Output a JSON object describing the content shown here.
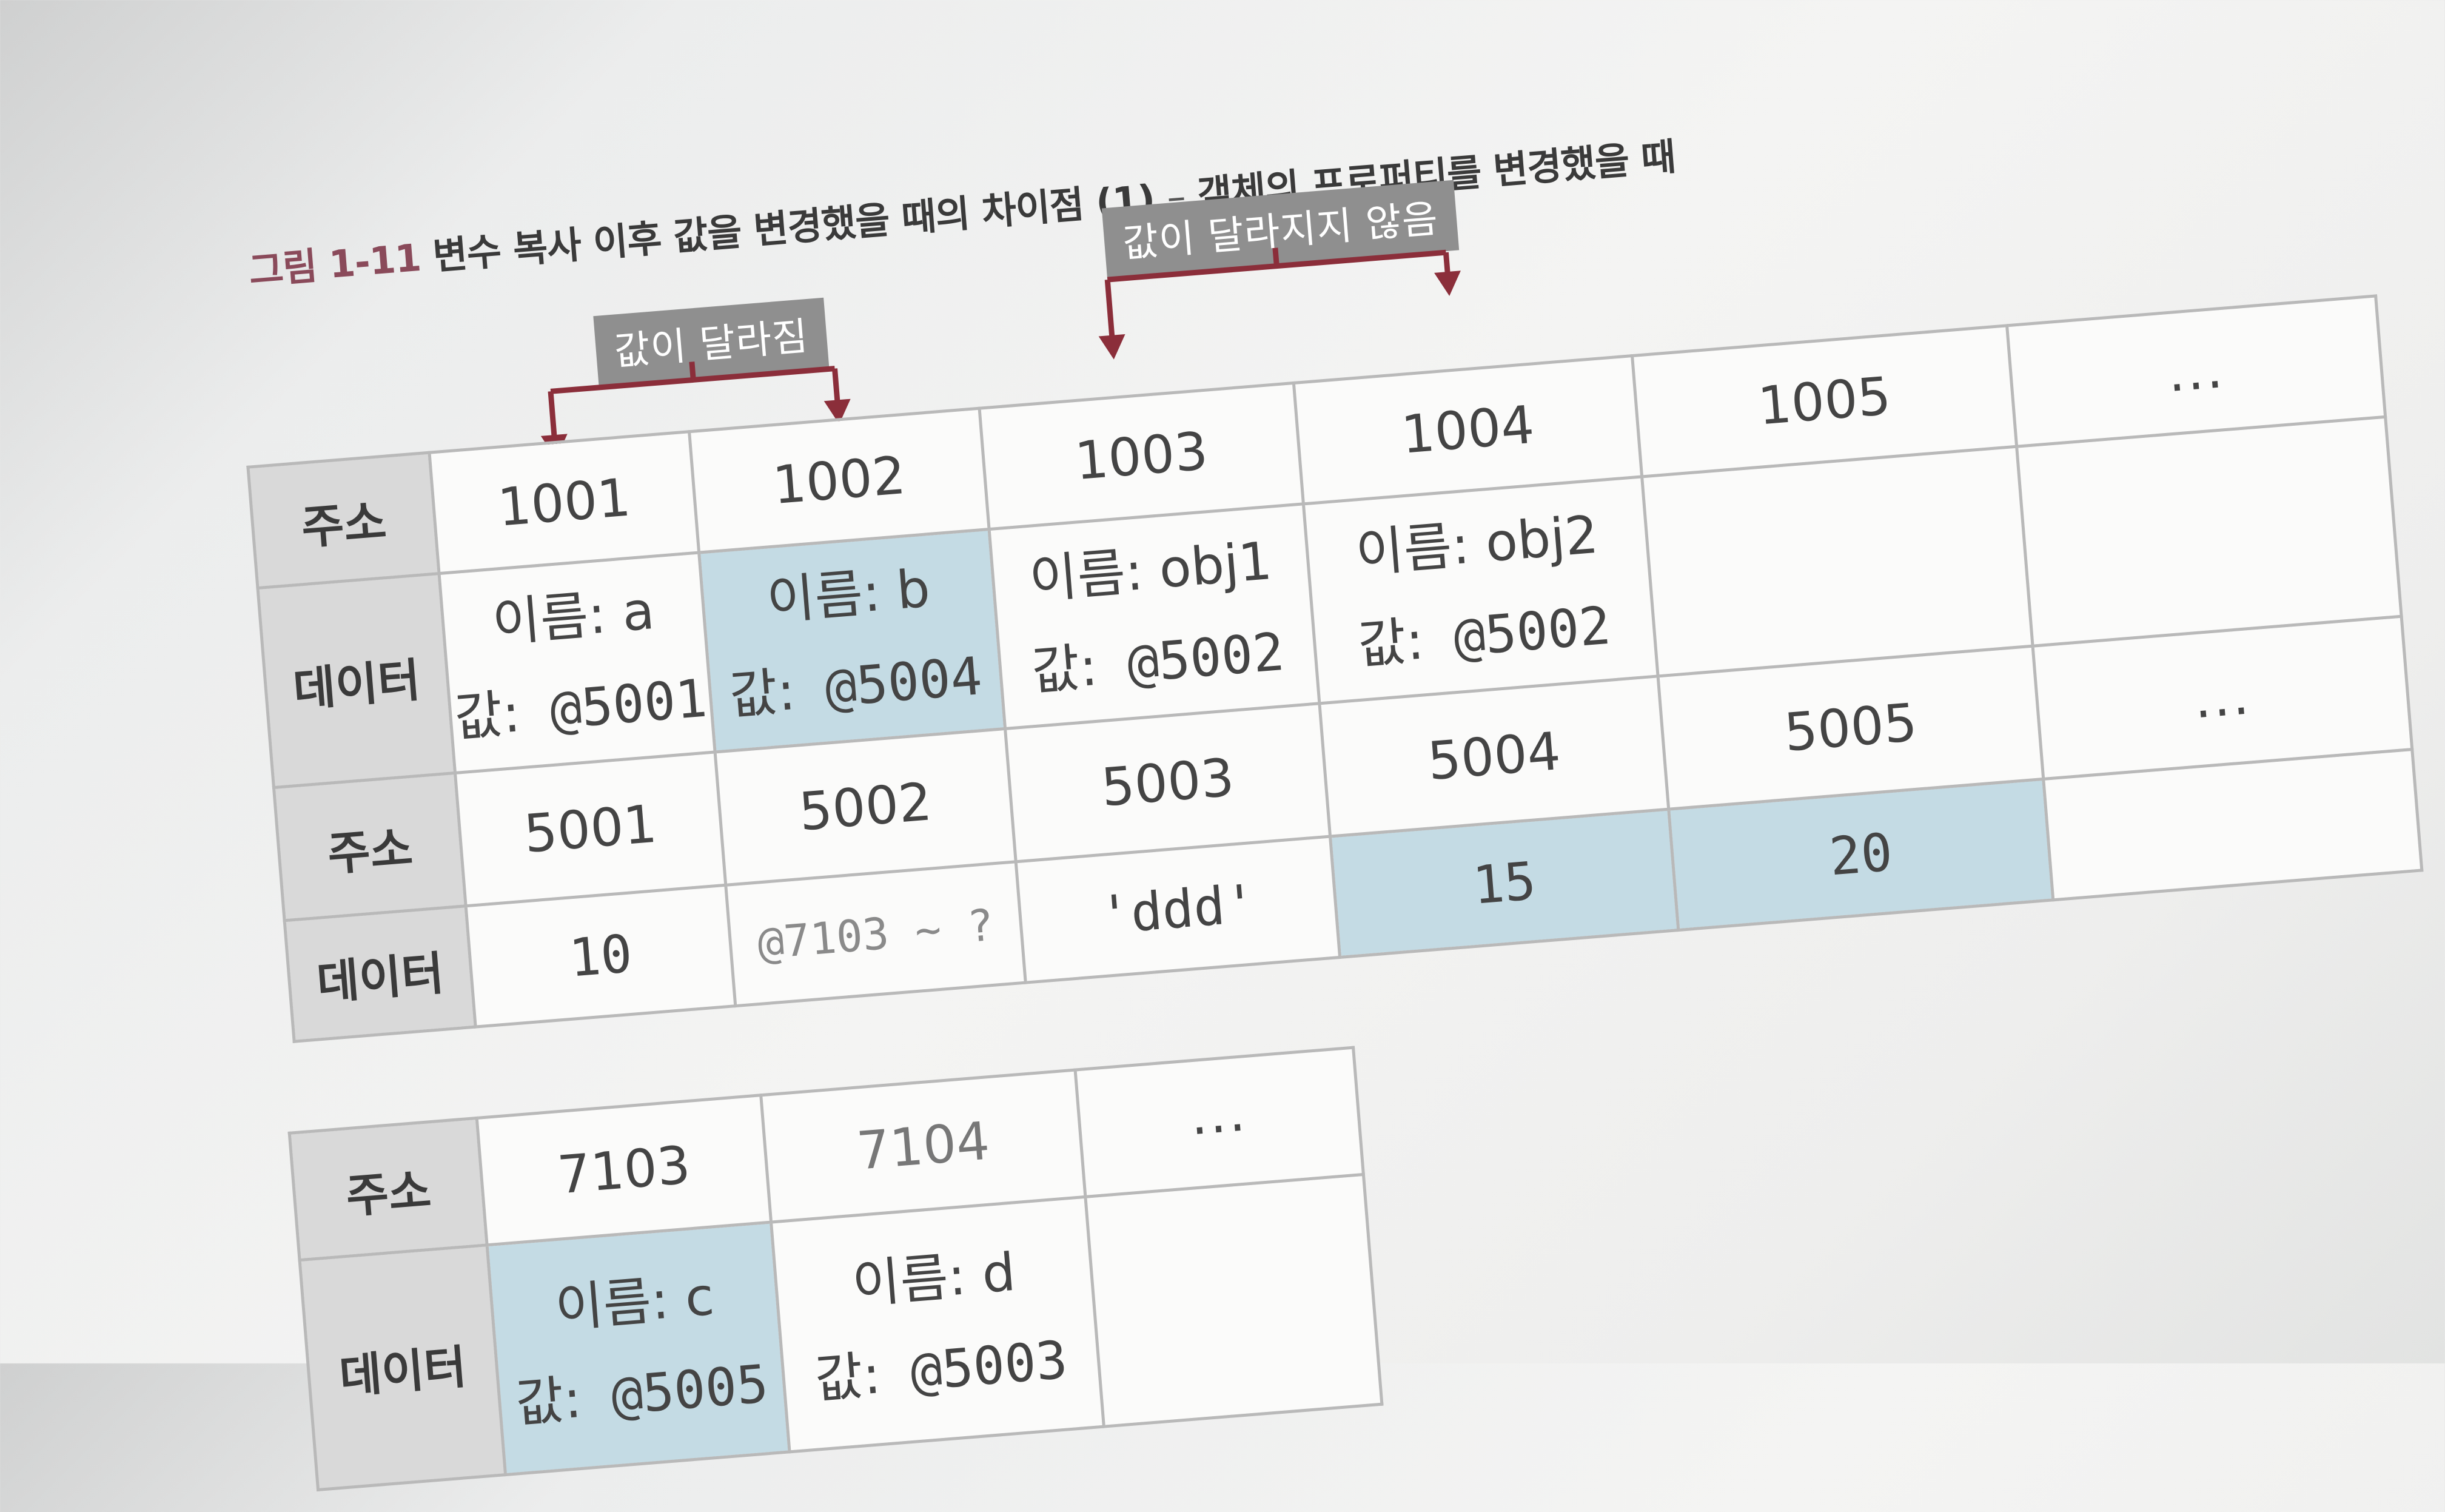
{
  "caption": {
    "figure_label": "그림 1-11",
    "title": "변수 복사 이후 값을 변경했을 때의 차이점 (1)",
    "separator": "–",
    "subtitle": "객체의 프로퍼티를 변경했을 때"
  },
  "tags": {
    "changed": "값이 달라짐",
    "unchanged": "값이 달라지지 않음"
  },
  "labels": {
    "address": "주소",
    "data": "데이터"
  },
  "table1": {
    "addresses": [
      "1001",
      "1002",
      "1003",
      "1004",
      "1005",
      "..."
    ],
    "vars": [
      {
        "name_label": "이름: a",
        "value_key": "값:",
        "value": "@5001"
      },
      {
        "name_label": "이름: b",
        "value_key": "값:",
        "value": "@5004"
      },
      {
        "name_label": "이름: obj1",
        "value_key": "값:",
        "value": "@5002"
      },
      {
        "name_label": "이름: obj2",
        "value_key": "값:",
        "value": "@5002"
      }
    ],
    "addresses2": [
      "5001",
      "5002",
      "5003",
      "5004",
      "5005",
      "..."
    ],
    "data2": [
      "10",
      "@7103 ~ ?",
      "'ddd'",
      "15",
      "20"
    ]
  },
  "table2": {
    "addresses": [
      "7103",
      "7104",
      "..."
    ],
    "vars": [
      {
        "name_label": "이름: c",
        "value_key": "값:",
        "value": "@5005"
      },
      {
        "name_label": "이름: d",
        "value_key": "값:",
        "value": "@5003"
      }
    ]
  },
  "colors": {
    "highlight": "#c4dbe4",
    "arrow": "#8b2e3a",
    "header": "#d9d9d9",
    "tag": "#8f8f8f"
  }
}
